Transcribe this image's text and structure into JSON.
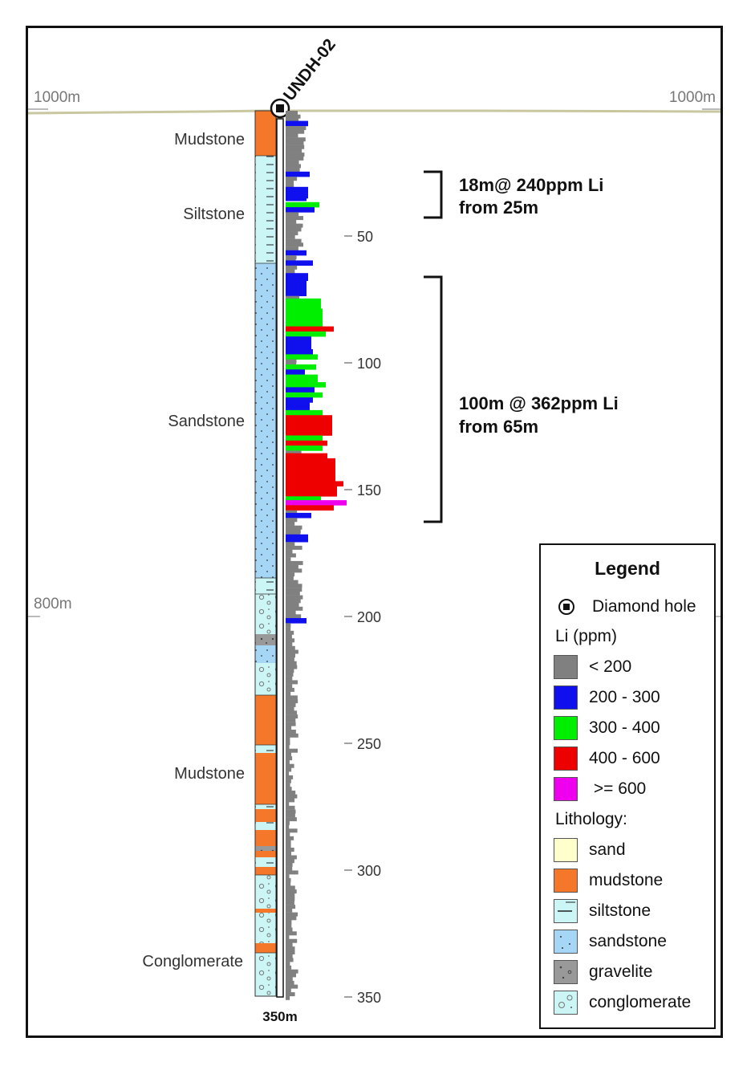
{
  "hole": {
    "name": "UNDH-02",
    "end_depth_label": "350m"
  },
  "elevation_labels": {
    "top_left": "1000m",
    "top_right": "1000m",
    "mid_left": "800m"
  },
  "depth_ticks": [
    "50",
    "100",
    "150",
    "200",
    "250",
    "300",
    "350"
  ],
  "unit_labels": {
    "mudstone_top": "Mudstone",
    "siltstone": "Siltstone",
    "sandstone": "Sandstone",
    "mudstone_lower": "Mudstone",
    "conglomerate": "Conglomerate"
  },
  "intercepts": [
    {
      "line1": "18m@ 240ppm Li",
      "line2": "from 25m"
    },
    {
      "line1": "100m @ 362ppm Li",
      "line2": "from 65m"
    }
  ],
  "legend": {
    "title": "Legend",
    "diamond_hole": "Diamond hole",
    "li_heading": "Li (ppm)",
    "li_classes": [
      {
        "label": "< 200",
        "color": "#808080"
      },
      {
        "label": "200 - 300",
        "color": "#1010ee"
      },
      {
        "label": "300 - 400",
        "color": "#00ee00"
      },
      {
        "label": "400 - 600",
        "color": "#ee0000"
      },
      {
        "label": " >= 600",
        "color": "#ee00ee"
      }
    ],
    "lith_heading": "Lithology:",
    "lithologies": [
      {
        "label": "sand",
        "color": "#ffffcc",
        "pattern": "none"
      },
      {
        "label": "mudstone",
        "color": "#f5782a",
        "pattern": "none"
      },
      {
        "label": "siltstone",
        "color": "#ccf5f5",
        "pattern": "dashes"
      },
      {
        "label": "sandstone",
        "color": "#a6d6f5",
        "pattern": "dots"
      },
      {
        "label": "gravelite",
        "color": "#999999",
        "pattern": "pebbles"
      },
      {
        "label": "conglomerate",
        "color": "#ccf5f5",
        "pattern": "pebbles"
      }
    ]
  }
}
